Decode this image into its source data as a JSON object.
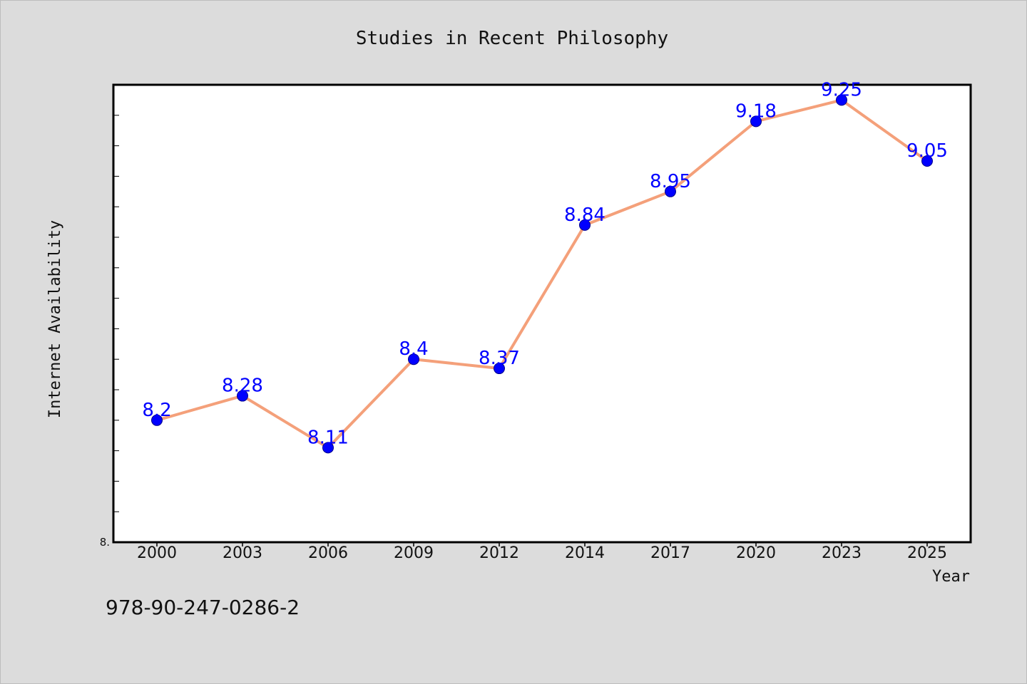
{
  "chart_data": {
    "type": "line",
    "title": "Studies in Recent Philosophy",
    "xlabel": "Year",
    "ylabel": "Internet Availability",
    "categories": [
      "2000",
      "2003",
      "2006",
      "2009",
      "2012",
      "2014",
      "2017",
      "2020",
      "2023",
      "2025"
    ],
    "series": [
      {
        "values": [
          8.2,
          8.28,
          8.11,
          8.4,
          8.37,
          8.84,
          8.95,
          9.18,
          9.25,
          9.05
        ]
      }
    ],
    "data_labels": [
      "8.2",
      "8.28",
      "8.11",
      "8.4",
      "8.37",
      "8.84",
      "8.95",
      "9.18",
      "9.25",
      "9.05"
    ],
    "ylim": [
      7.8,
      9.3
    ],
    "y_tick_labels": [
      "8."
    ],
    "grid": false,
    "colors": {
      "line": "#f4a07a",
      "marker": "#0000ff",
      "label": "#0000ff",
      "plot_bg": "#ffffff",
      "figure_bg": "#dcdcdc"
    }
  },
  "footer_text": "978-90-247-0286-2"
}
